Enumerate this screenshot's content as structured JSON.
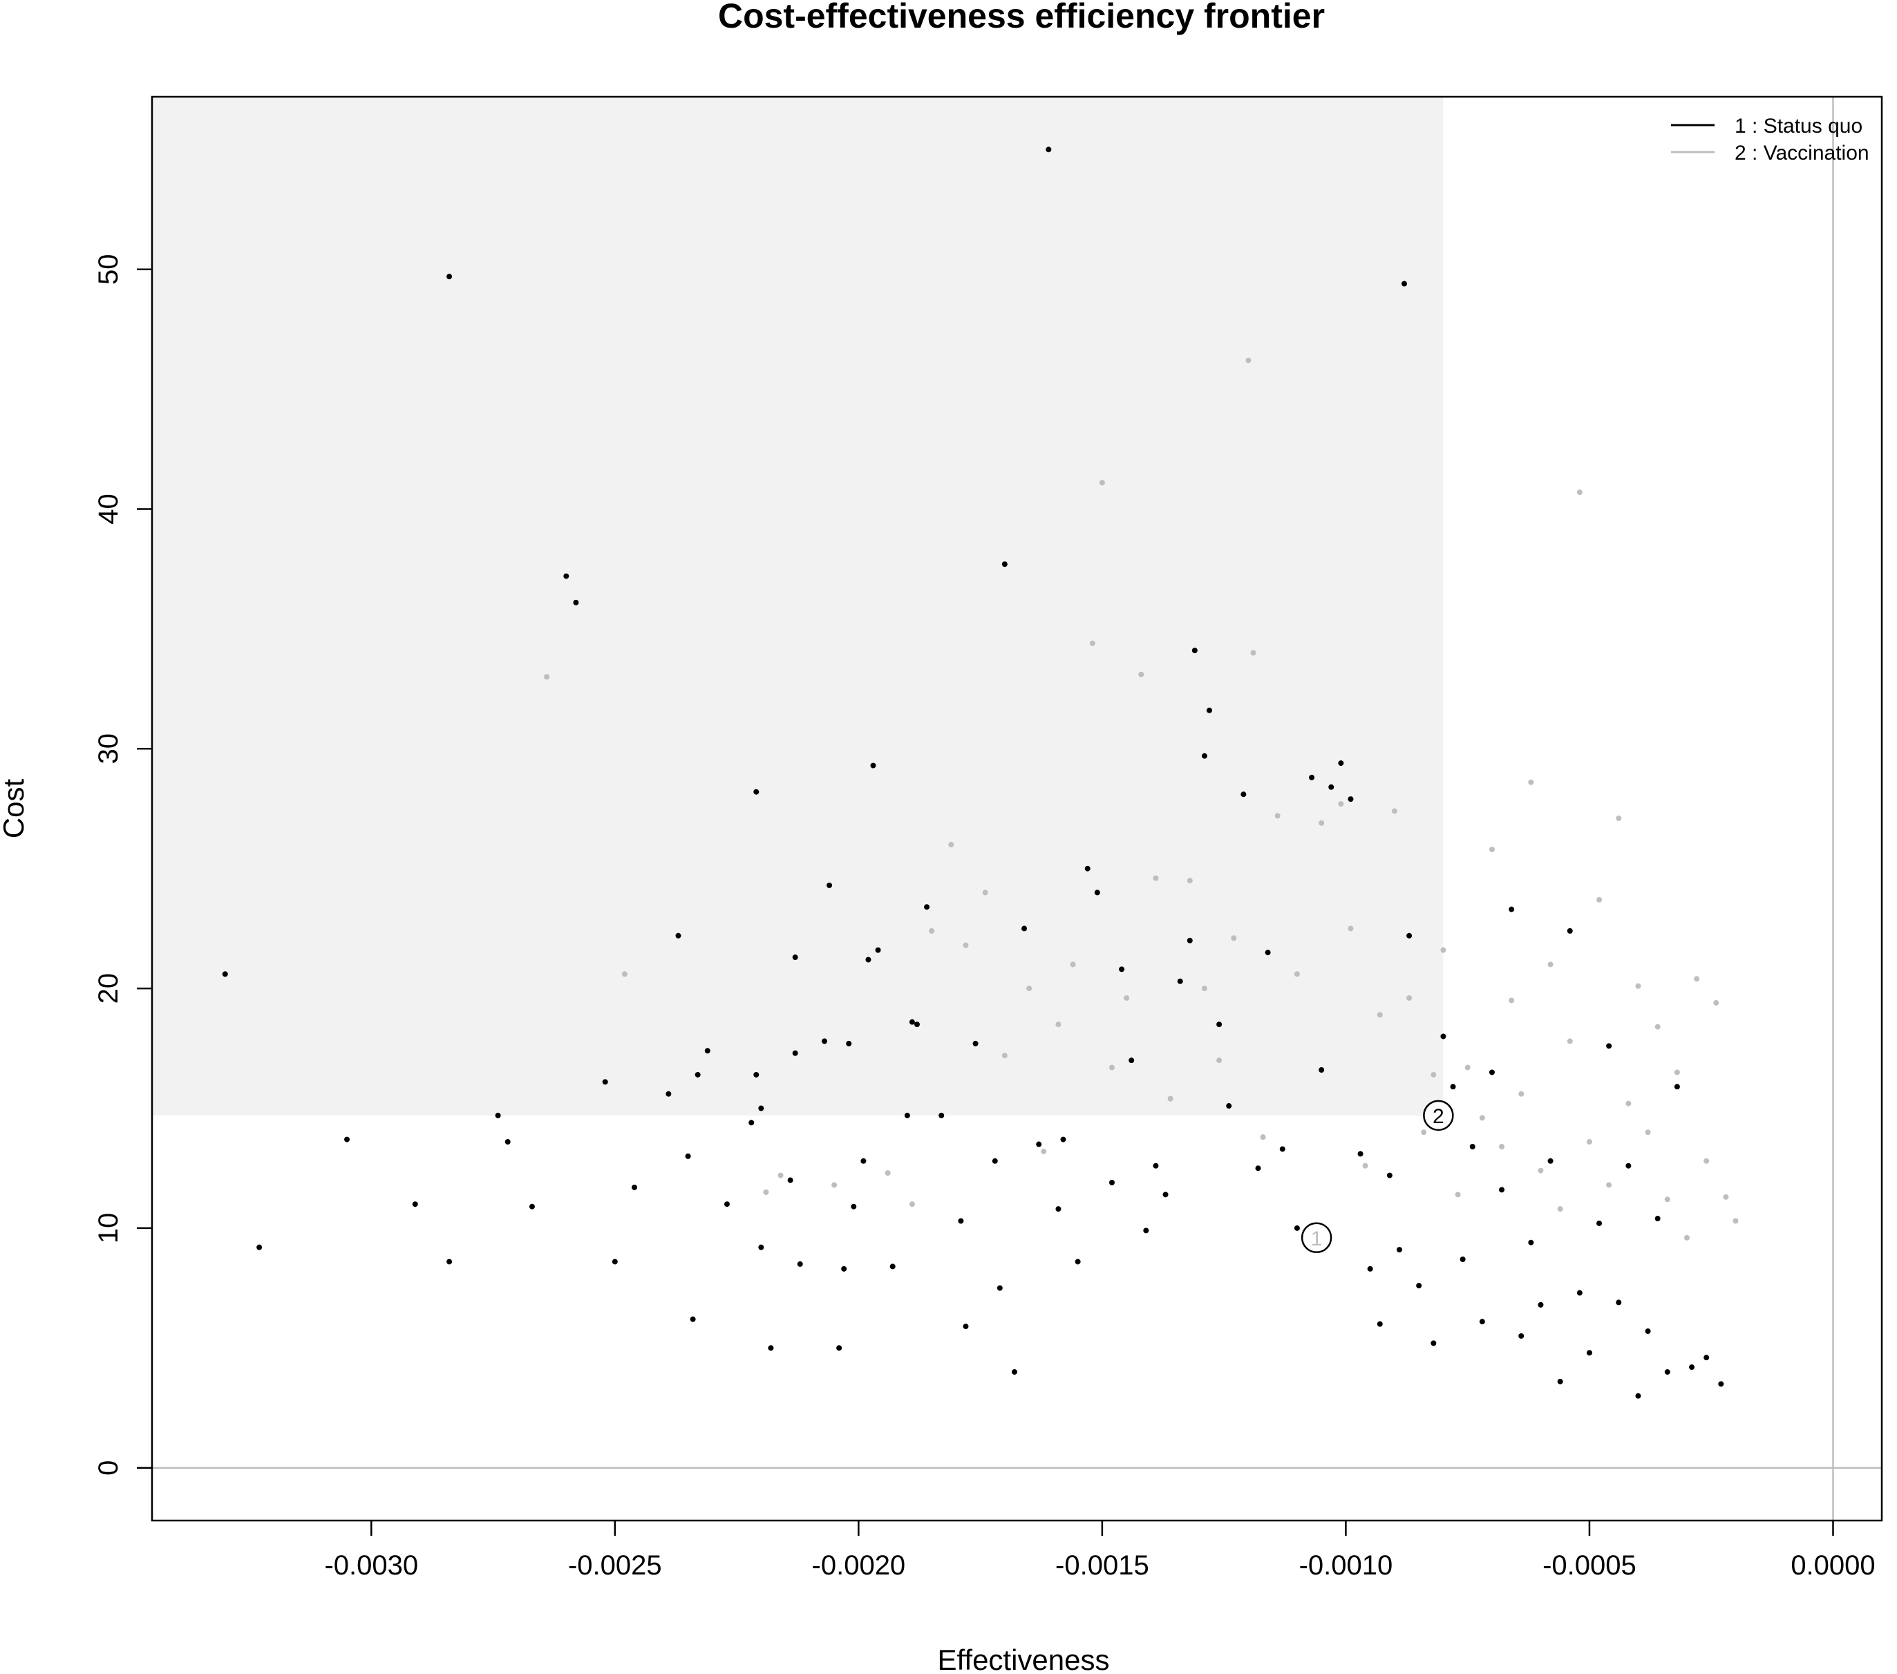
{
  "chart_data": {
    "type": "scatter",
    "title": "Cost-effectiveness efficiency frontier",
    "xlabel": "Effectiveness",
    "ylabel": "Cost",
    "xlim": [
      -0.00345,
      0.0001
    ],
    "ylim": [
      -2.2,
      57.2
    ],
    "xticks": [
      "-0.0030",
      "-0.0025",
      "-0.0020",
      "-0.0015",
      "-0.0010",
      "-0.0005",
      "0.0000"
    ],
    "yticks": [
      "0",
      "10",
      "20",
      "30",
      "40",
      "50"
    ],
    "reference_lines": {
      "x": 0,
      "y": 0,
      "color": "#bebebe"
    },
    "dominance_region": {
      "x": [
        -0.00345,
        -0.0008
      ],
      "y": [
        14.7,
        57.2
      ],
      "color": "#f2f2f2"
    },
    "legend": {
      "placement": "top-right",
      "entries": [
        {
          "label": "1 : Status quo",
          "color": "#000000"
        },
        {
          "label": "2 : Vaccination",
          "color": "#bebebe"
        }
      ]
    },
    "means": [
      {
        "label": "1",
        "x": -0.00106,
        "y": 9.6,
        "text_color": "#bebebe"
      },
      {
        "label": "2",
        "x": -0.00081,
        "y": 14.7,
        "text_color": "#000000"
      }
    ],
    "series": [
      {
        "name": "1 : Status quo",
        "color": "#000000",
        "points": [
          [
            -0.0033,
            20.6
          ],
          [
            -0.00323,
            9.2
          ],
          [
            -0.00305,
            13.7
          ],
          [
            -0.00291,
            11.0
          ],
          [
            -0.00284,
            49.7
          ],
          [
            -0.00284,
            8.6
          ],
          [
            -0.00274,
            14.7
          ],
          [
            -0.00272,
            13.6
          ],
          [
            -0.00267,
            10.9
          ],
          [
            -0.0026,
            37.2
          ],
          [
            -0.00258,
            36.1
          ],
          [
            -0.00252,
            16.1
          ],
          [
            -0.0025,
            8.6
          ],
          [
            -0.00246,
            11.7
          ],
          [
            -0.00239,
            15.6
          ],
          [
            -0.00237,
            22.2
          ],
          [
            -0.00235,
            13.0
          ],
          [
            -0.00234,
            6.2
          ],
          [
            -0.00233,
            16.4
          ],
          [
            -0.00231,
            17.4
          ],
          [
            -0.00227,
            11.0
          ],
          [
            -0.00222,
            14.4
          ],
          [
            -0.00221,
            16.4
          ],
          [
            -0.00221,
            28.2
          ],
          [
            -0.0022,
            9.2
          ],
          [
            -0.0022,
            15.0
          ],
          [
            -0.00218,
            5.0
          ],
          [
            -0.00214,
            12.0
          ],
          [
            -0.00213,
            17.3
          ],
          [
            -0.00213,
            21.3
          ],
          [
            -0.00212,
            8.5
          ],
          [
            -0.00207,
            17.8
          ],
          [
            -0.00206,
            24.3
          ],
          [
            -0.00204,
            5.0
          ],
          [
            -0.00203,
            8.3
          ],
          [
            -0.00202,
            17.7
          ],
          [
            -0.00201,
            10.9
          ],
          [
            -0.00199,
            12.8
          ],
          [
            -0.00198,
            21.2
          ],
          [
            -0.00197,
            29.3
          ],
          [
            -0.00196,
            21.6
          ],
          [
            -0.00193,
            8.4
          ],
          [
            -0.0019,
            14.7
          ],
          [
            -0.00189,
            18.6
          ],
          [
            -0.00188,
            18.5
          ],
          [
            -0.00186,
            23.4
          ],
          [
            -0.00183,
            14.7
          ],
          [
            -0.00179,
            10.3
          ],
          [
            -0.00178,
            5.9
          ],
          [
            -0.00176,
            17.7
          ],
          [
            -0.00172,
            12.8
          ],
          [
            -0.00171,
            7.5
          ],
          [
            -0.0017,
            37.7
          ],
          [
            -0.00168,
            4.0
          ],
          [
            -0.00166,
            22.5
          ],
          [
            -0.00163,
            13.5
          ],
          [
            -0.00161,
            55.0
          ],
          [
            -0.00159,
            10.8
          ],
          [
            -0.00158,
            13.7
          ],
          [
            -0.00155,
            8.6
          ],
          [
            -0.00153,
            25.0
          ],
          [
            -0.00151,
            24.0
          ],
          [
            -0.00148,
            11.9
          ],
          [
            -0.00146,
            20.8
          ],
          [
            -0.00144,
            17.0
          ],
          [
            -0.00141,
            9.9
          ],
          [
            -0.00139,
            12.6
          ],
          [
            -0.00137,
            11.4
          ],
          [
            -0.00134,
            20.3
          ],
          [
            -0.00132,
            22.0
          ],
          [
            -0.00131,
            34.1
          ],
          [
            -0.00129,
            29.7
          ],
          [
            -0.00128,
            31.6
          ],
          [
            -0.00126,
            18.5
          ],
          [
            -0.00124,
            15.1
          ],
          [
            -0.00121,
            28.1
          ],
          [
            -0.00118,
            12.5
          ],
          [
            -0.00116,
            21.5
          ],
          [
            -0.00113,
            13.3
          ],
          [
            -0.0011,
            10.0
          ],
          [
            -0.00107,
            28.8
          ],
          [
            -0.00105,
            16.6
          ],
          [
            -0.00103,
            28.4
          ],
          [
            -0.00101,
            29.4
          ],
          [
            -0.00099,
            27.9
          ],
          [
            -0.00097,
            13.1
          ],
          [
            -0.00095,
            8.3
          ],
          [
            -0.00093,
            6.0
          ],
          [
            -0.00091,
            12.2
          ],
          [
            -0.00089,
            9.1
          ],
          [
            -0.00088,
            49.4
          ],
          [
            -0.00087,
            22.2
          ],
          [
            -0.00085,
            7.6
          ],
          [
            -0.00082,
            5.2
          ],
          [
            -0.0008,
            18.0
          ],
          [
            -0.00078,
            15.9
          ],
          [
            -0.00076,
            8.7
          ],
          [
            -0.00074,
            13.4
          ],
          [
            -0.00072,
            6.1
          ],
          [
            -0.0007,
            16.5
          ],
          [
            -0.00068,
            11.6
          ],
          [
            -0.00066,
            23.3
          ],
          [
            -0.00064,
            5.5
          ],
          [
            -0.00062,
            9.4
          ],
          [
            -0.0006,
            6.8
          ],
          [
            -0.00058,
            12.8
          ],
          [
            -0.00056,
            3.6
          ],
          [
            -0.00054,
            22.4
          ],
          [
            -0.00052,
            7.3
          ],
          [
            -0.0005,
            4.8
          ],
          [
            -0.00048,
            10.2
          ],
          [
            -0.00046,
            17.6
          ],
          [
            -0.00044,
            6.9
          ],
          [
            -0.00042,
            12.6
          ],
          [
            -0.0004,
            3.0
          ],
          [
            -0.00038,
            5.7
          ],
          [
            -0.00036,
            10.4
          ],
          [
            -0.00034,
            4.0
          ],
          [
            -0.00032,
            15.9
          ],
          [
            -0.00029,
            4.2
          ],
          [
            -0.00026,
            4.6
          ],
          [
            -0.00023,
            3.5
          ]
        ]
      },
      {
        "name": "2 : Vaccination",
        "color": "#bebebe",
        "points": [
          [
            -0.00264,
            33.0
          ],
          [
            -0.00248,
            20.6
          ],
          [
            -0.00219,
            11.5
          ],
          [
            -0.00216,
            12.2
          ],
          [
            -0.00205,
            11.8
          ],
          [
            -0.00194,
            12.3
          ],
          [
            -0.00189,
            11.0
          ],
          [
            -0.00185,
            22.4
          ],
          [
            -0.00181,
            26.0
          ],
          [
            -0.00178,
            21.8
          ],
          [
            -0.00174,
            24.0
          ],
          [
            -0.0017,
            17.2
          ],
          [
            -0.00165,
            20.0
          ],
          [
            -0.00162,
            13.2
          ],
          [
            -0.00159,
            18.5
          ],
          [
            -0.00156,
            21.0
          ],
          [
            -0.00152,
            34.4
          ],
          [
            -0.0015,
            41.1
          ],
          [
            -0.00148,
            16.7
          ],
          [
            -0.00145,
            19.6
          ],
          [
            -0.00142,
            33.1
          ],
          [
            -0.00139,
            24.6
          ],
          [
            -0.00136,
            15.4
          ],
          [
            -0.00132,
            24.5
          ],
          [
            -0.00129,
            20.0
          ],
          [
            -0.00126,
            17.0
          ],
          [
            -0.00123,
            22.1
          ],
          [
            -0.0012,
            46.2
          ],
          [
            -0.00119,
            34.0
          ],
          [
            -0.00117,
            13.8
          ],
          [
            -0.00114,
            27.2
          ],
          [
            -0.0011,
            20.6
          ],
          [
            -0.00105,
            26.9
          ],
          [
            -0.00101,
            27.7
          ],
          [
            -0.00099,
            22.5
          ],
          [
            -0.00096,
            12.6
          ],
          [
            -0.00093,
            18.9
          ],
          [
            -0.0009,
            27.4
          ],
          [
            -0.00087,
            19.6
          ],
          [
            -0.00084,
            14.0
          ],
          [
            -0.00082,
            16.4
          ],
          [
            -0.0008,
            21.6
          ],
          [
            -0.00077,
            11.4
          ],
          [
            -0.00075,
            16.7
          ],
          [
            -0.00072,
            14.6
          ],
          [
            -0.0007,
            25.8
          ],
          [
            -0.00068,
            13.4
          ],
          [
            -0.00066,
            19.5
          ],
          [
            -0.00064,
            15.6
          ],
          [
            -0.00062,
            28.6
          ],
          [
            -0.0006,
            12.4
          ],
          [
            -0.00058,
            21.0
          ],
          [
            -0.00056,
            10.8
          ],
          [
            -0.00054,
            17.8
          ],
          [
            -0.00052,
            40.7
          ],
          [
            -0.0005,
            13.6
          ],
          [
            -0.00048,
            23.7
          ],
          [
            -0.00046,
            11.8
          ],
          [
            -0.00044,
            27.1
          ],
          [
            -0.00042,
            15.2
          ],
          [
            -0.0004,
            20.1
          ],
          [
            -0.00038,
            14.0
          ],
          [
            -0.00036,
            18.4
          ],
          [
            -0.00034,
            11.2
          ],
          [
            -0.00032,
            16.5
          ],
          [
            -0.0003,
            9.6
          ],
          [
            -0.00028,
            20.4
          ],
          [
            -0.00026,
            12.8
          ],
          [
            -0.00024,
            19.4
          ],
          [
            -0.00022,
            11.3
          ],
          [
            -0.0002,
            10.3
          ]
        ]
      }
    ]
  }
}
